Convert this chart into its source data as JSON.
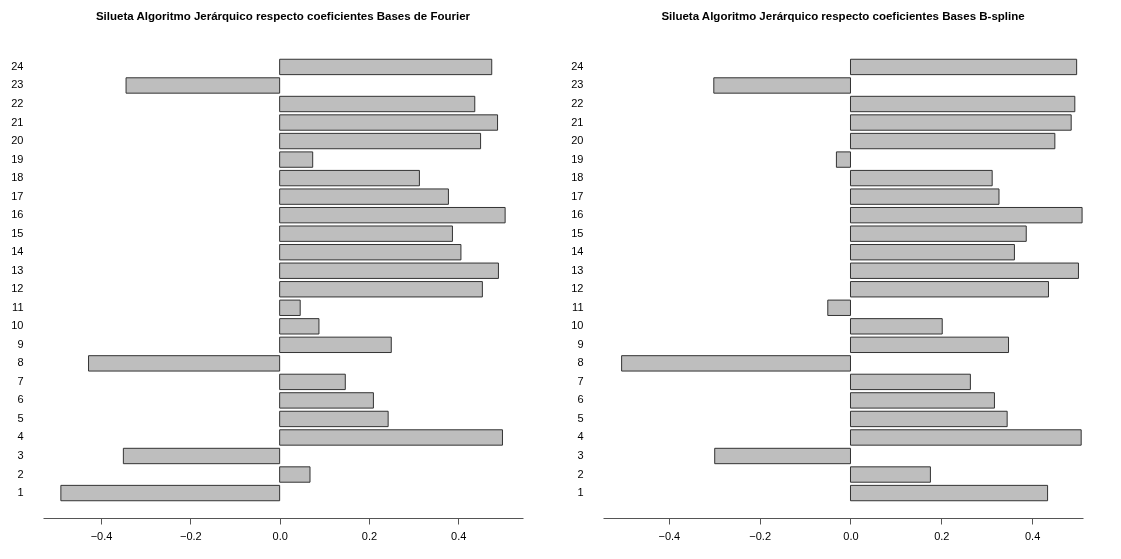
{
  "chart_data": [
    {
      "type": "bar",
      "orientation": "horizontal",
      "title": "Silueta Algoritmo Jerárquico respecto coeficientes Bases de Fourier",
      "categories": [
        "24",
        "23",
        "22",
        "21",
        "20",
        "19",
        "18",
        "17",
        "16",
        "15",
        "14",
        "13",
        "12",
        "11",
        "10",
        "9",
        "8",
        "7",
        "6",
        "5",
        "4",
        "3",
        "2",
        "1"
      ],
      "color": "#bebebe",
      "values": [
        0.475,
        -0.344,
        0.437,
        0.488,
        0.45,
        0.074,
        0.313,
        0.378,
        0.505,
        0.387,
        0.406,
        0.49,
        0.454,
        0.046,
        0.088,
        0.25,
        -0.428,
        0.147,
        0.21,
        0.243,
        0.499,
        -0.35,
        0.068,
        -0.49
      ],
      "xlim": [
        -0.53,
        0.545
      ],
      "xticks": [
        -0.4,
        -0.2,
        {
          "value": 0,
          "label": "0.0"
        },
        0.2,
        0.4
      ]
    },
    {
      "type": "bar",
      "orientation": "horizontal",
      "title": "Silueta Algoritmo Jerárquico respecto coeficientes Bases B-spline",
      "categories": [
        "24",
        "23",
        "22",
        "21",
        "20",
        "19",
        "18",
        "17",
        "16",
        "15",
        "14",
        "13",
        "12",
        "11",
        "10",
        "9",
        "8",
        "7",
        "6",
        "5",
        "4",
        "3",
        "2",
        "1"
      ],
      "color": "#bebebe",
      "values": [
        0.498,
        -0.301,
        0.494,
        0.486,
        0.45,
        -0.031,
        0.312,
        0.327,
        0.51,
        0.387,
        0.361,
        0.502,
        0.436,
        -0.05,
        0.202,
        0.348,
        -0.504,
        0.264,
        0.317,
        0.345,
        0.508,
        -0.299,
        0.176,
        0.434
      ],
      "xlim": [
        -0.545,
        0.512
      ],
      "xticks": [
        -0.4,
        -0.2,
        {
          "value": 0,
          "label": "0.0"
        },
        0.2,
        0.4
      ]
    }
  ]
}
